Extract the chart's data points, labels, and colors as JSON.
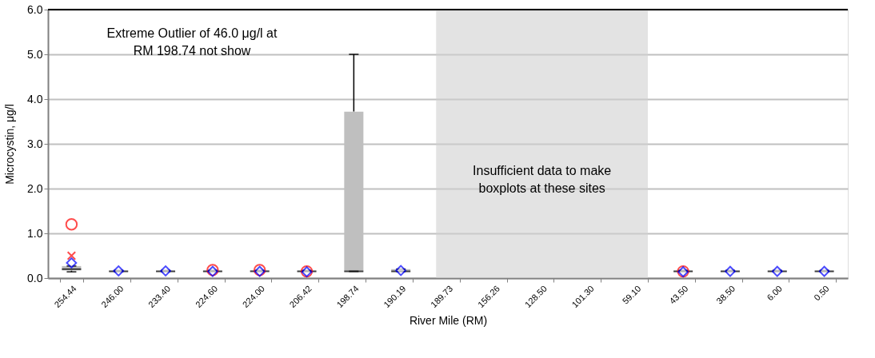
{
  "chart_data": {
    "type": "box",
    "xlabel": "River Mile (RM)",
    "ylabel": "Microcystin, μg/l",
    "categories": [
      "254.44",
      "246.00",
      "233.40",
      "224.60",
      "224.00",
      "206.42",
      "198.74",
      "190.19",
      "189.73",
      "156.26",
      "128.50",
      "101.30",
      "59.10",
      "43.50",
      "38.50",
      "6.00",
      "0.50"
    ],
    "boxes": [
      {
        "low": 0.14,
        "q1": 0.17,
        "median": 0.2,
        "q3": 0.27,
        "high": 0.27
      },
      {
        "low": 0.15,
        "q1": 0.15,
        "median": 0.15,
        "q3": 0.17,
        "high": 0.17
      },
      {
        "low": 0.15,
        "q1": 0.15,
        "median": 0.15,
        "q3": 0.17,
        "high": 0.17
      },
      {
        "low": 0.15,
        "q1": 0.15,
        "median": 0.15,
        "q3": 0.17,
        "high": 0.17
      },
      {
        "low": 0.15,
        "q1": 0.15,
        "median": 0.15,
        "q3": 0.17,
        "high": 0.17
      },
      {
        "low": 0.15,
        "q1": 0.15,
        "median": 0.15,
        "q3": 0.17,
        "high": 0.17
      },
      {
        "low": 0.15,
        "q1": 0.15,
        "median": 0.15,
        "q3": 3.72,
        "high": 5.0
      },
      {
        "low": 0.15,
        "q1": 0.15,
        "median": 0.15,
        "q3": 0.2,
        "high": 0.2
      },
      null,
      null,
      null,
      null,
      null,
      {
        "low": 0.15,
        "q1": 0.15,
        "median": 0.15,
        "q3": 0.17,
        "high": 0.17
      },
      {
        "low": 0.15,
        "q1": 0.15,
        "median": 0.15,
        "q3": 0.17,
        "high": 0.17
      },
      {
        "low": 0.15,
        "q1": 0.15,
        "median": 0.15,
        "q3": 0.17,
        "high": 0.17
      },
      {
        "low": 0.15,
        "q1": 0.15,
        "median": 0.15,
        "q3": 0.17,
        "high": 0.17
      }
    ],
    "series": [
      {
        "type": "scatter",
        "marker": "circle",
        "color": "#ff0000",
        "x": [
          "254.44",
          "224.60",
          "224.00",
          "206.42",
          "43.50"
        ],
        "values": [
          1.2,
          0.18,
          0.18,
          0.15,
          0.15
        ]
      },
      {
        "type": "scatter",
        "marker": "cross",
        "color": "#ff0000",
        "x": [
          "254.44"
        ],
        "values": [
          0.5
        ]
      },
      {
        "type": "scatter",
        "marker": "diamond",
        "color": "#0000ff",
        "x": [
          "254.44",
          "246.00",
          "233.40",
          "224.60",
          "224.00",
          "206.42",
          "190.19",
          "43.50",
          "38.50",
          "6.00",
          "0.50"
        ],
        "values": [
          0.34,
          0.16,
          0.16,
          0.15,
          0.15,
          0.14,
          0.17,
          0.14,
          0.15,
          0.15,
          0.15
        ]
      }
    ],
    "ylim": [
      0,
      6
    ],
    "yticks": [
      {
        "value": 0,
        "label": "0.0"
      },
      {
        "value": 1,
        "label": "1.0"
      },
      {
        "value": 2,
        "label": "2.0"
      },
      {
        "value": 3,
        "label": "3.0"
      },
      {
        "value": 4,
        "label": "4.0"
      },
      {
        "value": 5,
        "label": "5.0"
      },
      {
        "value": 6,
        "label": "6.0"
      }
    ],
    "grid": "y",
    "bands": [
      {
        "axis": "x",
        "from": "189.73",
        "to": "59.10",
        "label": "Insufficient data to make\nboxplots at these sites",
        "color": "#d0d0d0"
      }
    ],
    "annotations": [
      "Extreme Outlier of 46.0 μg/l at\nRM 198.74 not show"
    ]
  }
}
